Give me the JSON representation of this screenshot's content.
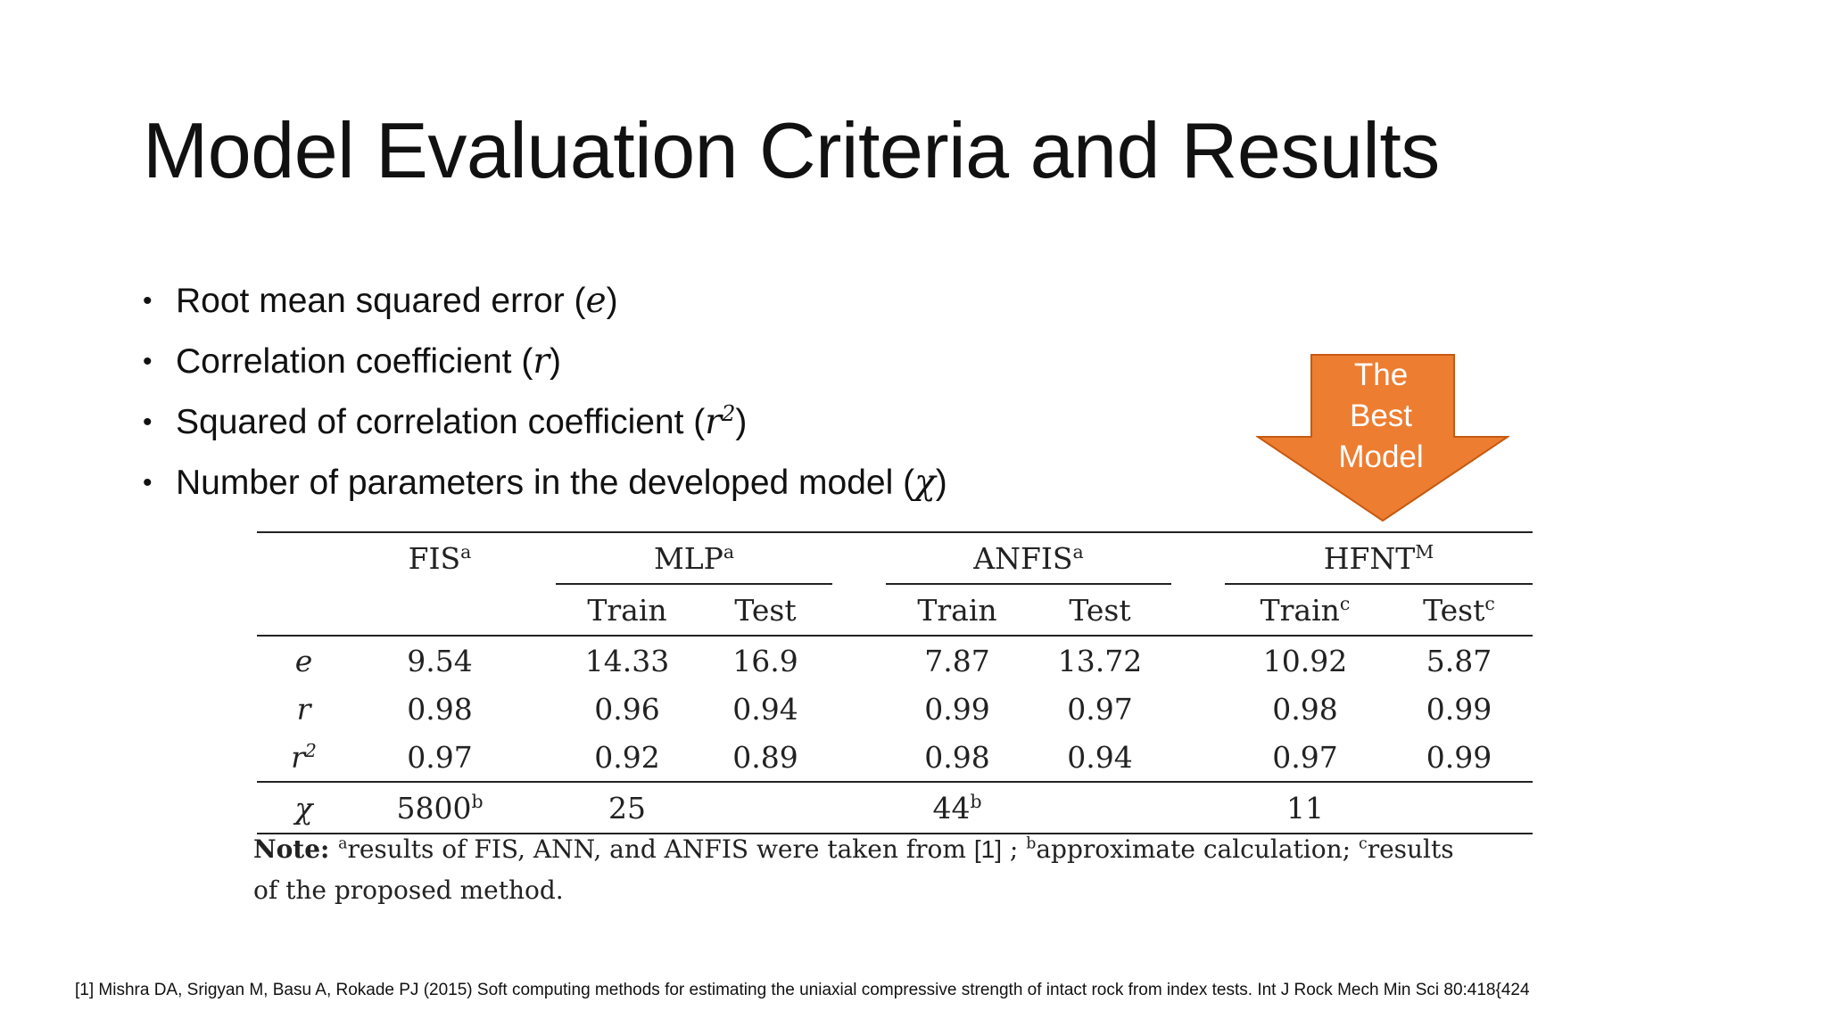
{
  "title": "Model Evaluation Criteria and Results",
  "bullets": [
    {
      "text": "Root mean squared error (",
      "symbol": "e",
      "sup": "",
      "close": ")"
    },
    {
      "text": "Correlation coefficient (",
      "symbol": "r",
      "sup": "",
      "close": ")"
    },
    {
      "text": "Squared of correlation coefficient (",
      "symbol": "r",
      "sup": "2",
      "close": ")"
    },
    {
      "text": "Number of parameters in the developed model (",
      "symbol": "χ",
      "sup": "",
      "close": ")"
    }
  ],
  "callout": {
    "lines": [
      "The",
      "Best",
      "Model"
    ],
    "color": "#ED7D31"
  },
  "table": {
    "models": [
      {
        "name": "FIS",
        "sup": "a"
      },
      {
        "name": "MLP",
        "sup": "a"
      },
      {
        "name": "ANFIS",
        "sup": "a"
      },
      {
        "name": "HFNT",
        "sup": "M"
      }
    ],
    "subheaders": {
      "train": "Train",
      "test": "Test",
      "hfnt_train": "Train",
      "hfnt_test": "Test",
      "hfnt_sup": "c"
    },
    "rows": [
      {
        "label": "e",
        "label_sup": "",
        "fis": "9.54",
        "mlp_train": "14.33",
        "mlp_test": "16.9",
        "anfis_train": "7.87",
        "anfis_test": "13.72",
        "hfnt_train": "10.92",
        "hfnt_test": "5.87"
      },
      {
        "label": "r",
        "label_sup": "",
        "fis": "0.98",
        "mlp_train": "0.96",
        "mlp_test": "0.94",
        "anfis_train": "0.99",
        "anfis_test": "0.97",
        "hfnt_train": "0.98",
        "hfnt_test": "0.99"
      },
      {
        "label": "r",
        "label_sup": "2",
        "fis": "0.97",
        "mlp_train": "0.92",
        "mlp_test": "0.89",
        "anfis_train": "0.98",
        "anfis_test": "0.94",
        "hfnt_train": "0.97",
        "hfnt_test": "0.99"
      }
    ],
    "chi_row": {
      "label": "χ",
      "fis": "5800",
      "fis_sup": "b",
      "mlp": "25",
      "anfis": "44",
      "anfis_sup": "b",
      "hfnt": "11"
    }
  },
  "note": {
    "lead": "Note: ",
    "a_sup": "a",
    "a_text": "results of FIS, ANN, and ANFIS were taken from ",
    "ref": "[1]",
    "sep": " ; ",
    "b_sup": "b",
    "b_text": "approximate calculation; ",
    "c_sup": "c",
    "c_text": "results",
    "line2": "of the proposed method."
  },
  "footnote": "[1] Mishra DA, Srigyan M, Basu A, Rokade PJ (2015) Soft computing methods for estimating the uniaxial compressive strength of intact rock from index tests. Int J Rock Mech Min Sci 80:418{424"
}
